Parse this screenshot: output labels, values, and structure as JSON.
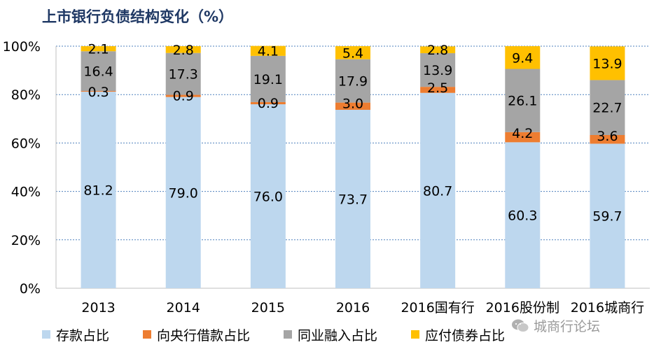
{
  "chart_data": {
    "type": "bar",
    "stacked": true,
    "title": "上市银行负债结构变化（%）",
    "categories": [
      "2013",
      "2014",
      "2015",
      "2016",
      "2016国有行",
      "2016股份制",
      "2016城商行"
    ],
    "ylim": [
      0,
      100
    ],
    "yticks": [
      "0%",
      "20%",
      "40%",
      "60%",
      "80%",
      "100%"
    ],
    "grid": true,
    "legend_position": "bottom",
    "series": [
      {
        "name": "存款占比",
        "color": "#bdd7ee",
        "values": [
          81.2,
          79.0,
          76.0,
          73.7,
          80.7,
          60.3,
          59.7
        ],
        "labels": [
          "81.2",
          "79.0",
          "76.0",
          "73.7",
          "80.7",
          "60.3",
          "59.7"
        ]
      },
      {
        "name": "向央行借款占比",
        "color": "#ed7d31",
        "values": [
          0.3,
          0.9,
          0.9,
          3.0,
          2.5,
          4.2,
          3.6
        ],
        "labels": [
          "0.3",
          "0.9",
          "0.9",
          "3.0",
          "2.5",
          "4.2",
          "3.6"
        ]
      },
      {
        "name": "同业融入占比",
        "color": "#a5a5a5",
        "values": [
          16.4,
          17.3,
          19.1,
          17.9,
          13.9,
          26.1,
          22.7
        ],
        "labels": [
          "16.4",
          "17.3",
          "19.1",
          "17.9",
          "13.9",
          "26.1",
          "22.7"
        ]
      },
      {
        "name": "应付债券占比",
        "color": "#ffc000",
        "values": [
          2.1,
          2.8,
          4.1,
          5.4,
          2.8,
          9.4,
          13.9
        ],
        "labels": [
          "2.1",
          "2.8",
          "4.1",
          "5.4",
          "2.8",
          "9.4",
          "13.9"
        ]
      }
    ]
  },
  "watermark": {
    "text": "城商行论坛",
    "icon": "wechat-icon"
  }
}
